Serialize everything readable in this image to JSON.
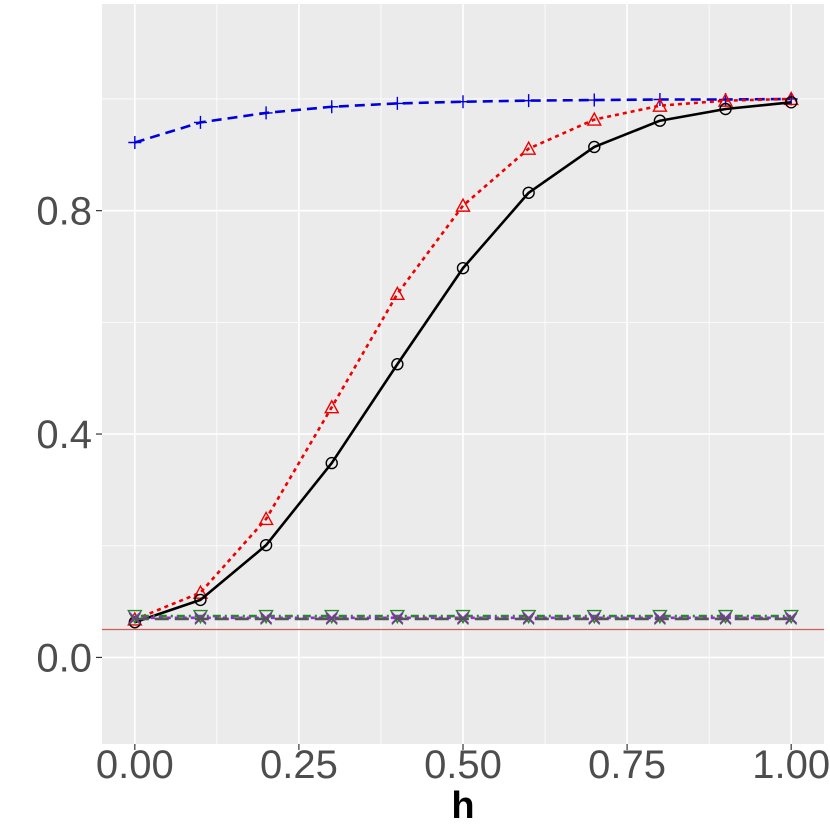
{
  "chart_data": {
    "type": "line",
    "xlabel": "h",
    "ylabel": "",
    "title": "",
    "xlim": [
      -0.05,
      1.05
    ],
    "ylim": [
      -0.155,
      1.17
    ],
    "x_ticks": [
      0.0,
      0.25,
      0.5,
      0.75,
      1.0
    ],
    "x_tick_labels": [
      "0.00",
      "0.25",
      "0.50",
      "0.75",
      "1.00"
    ],
    "y_ticks": [
      0.0,
      0.4,
      0.8
    ],
    "y_tick_labels": [
      "0.0",
      "0.4",
      "0.8"
    ],
    "grid": true,
    "x": [
      0.0,
      0.1,
      0.2,
      0.3,
      0.4,
      0.5,
      0.6,
      0.7,
      0.8,
      0.9,
      1.0
    ],
    "reference_line": {
      "y": 0.05,
      "color": "#cd5c5c"
    },
    "series": [
      {
        "values": [
          0.922,
          0.958,
          0.975,
          0.986,
          0.992,
          0.995,
          0.997,
          0.998,
          0.999,
          0.999,
          1.0
        ],
        "color": "#0000dd",
        "dash": "dashed",
        "marker": "plus"
      },
      {
        "values": [
          0.068,
          0.116,
          0.248,
          0.448,
          0.651,
          0.809,
          0.911,
          0.963,
          0.988,
          0.997,
          1.0
        ],
        "color": "#ee0000",
        "dash": "dotted",
        "marker": "triangle"
      },
      {
        "values": [
          0.063,
          0.103,
          0.201,
          0.348,
          0.525,
          0.697,
          0.832,
          0.914,
          0.961,
          0.982,
          0.994
        ],
        "color": "#000000",
        "dash": "solid",
        "marker": "circle"
      },
      {
        "values": [
          0.074,
          0.074,
          0.074,
          0.074,
          0.074,
          0.074,
          0.074,
          0.074,
          0.074,
          0.074,
          0.074
        ],
        "color": "#228b22",
        "dash": "dotdash",
        "marker": "triangle-down"
      },
      {
        "values": [
          0.071,
          0.071,
          0.071,
          0.071,
          0.071,
          0.071,
          0.071,
          0.071,
          0.071,
          0.071,
          0.071
        ],
        "color": "#a020f0",
        "dash": "dotted",
        "marker": "cross"
      },
      {
        "values": [
          0.069,
          0.069,
          0.069,
          0.069,
          0.069,
          0.069,
          0.069,
          0.069,
          0.069,
          0.069,
          0.069
        ],
        "color": "#555555",
        "dash": "longdash",
        "marker": "cross"
      }
    ]
  }
}
